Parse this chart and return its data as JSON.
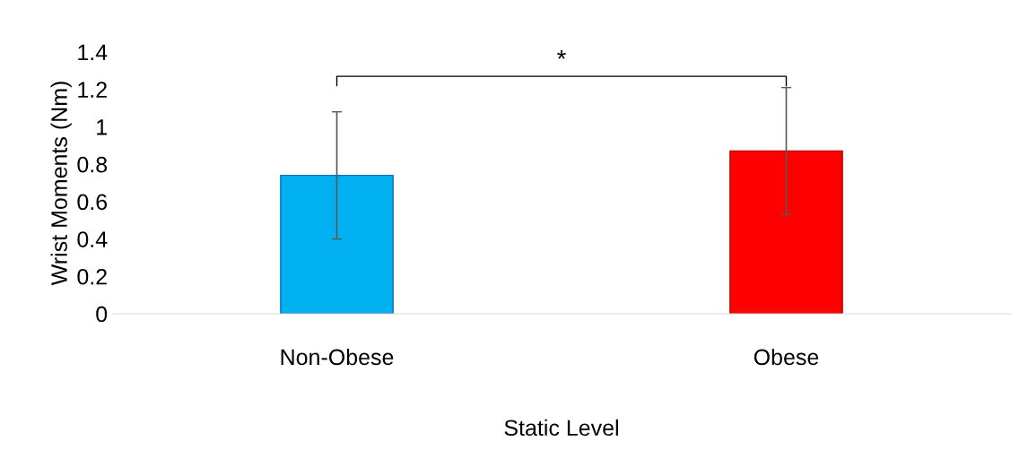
{
  "chart_data": {
    "type": "bar",
    "xlabel": "Static Level",
    "ylabel": "Wrist Moments (Nm)",
    "categories": [
      "Non-Obese",
      "Obese"
    ],
    "values": [
      0.74,
      0.87
    ],
    "colors": [
      "#00b0f0",
      "#ff0000"
    ],
    "errors": [
      0.34,
      0.34
    ],
    "ylim": [
      0,
      1.4
    ],
    "yticks": [
      0,
      0.2,
      0.4,
      0.6,
      0.8,
      1,
      1.2,
      1.4
    ],
    "grid": false,
    "legend": false,
    "annotations": [
      "*"
    ]
  }
}
